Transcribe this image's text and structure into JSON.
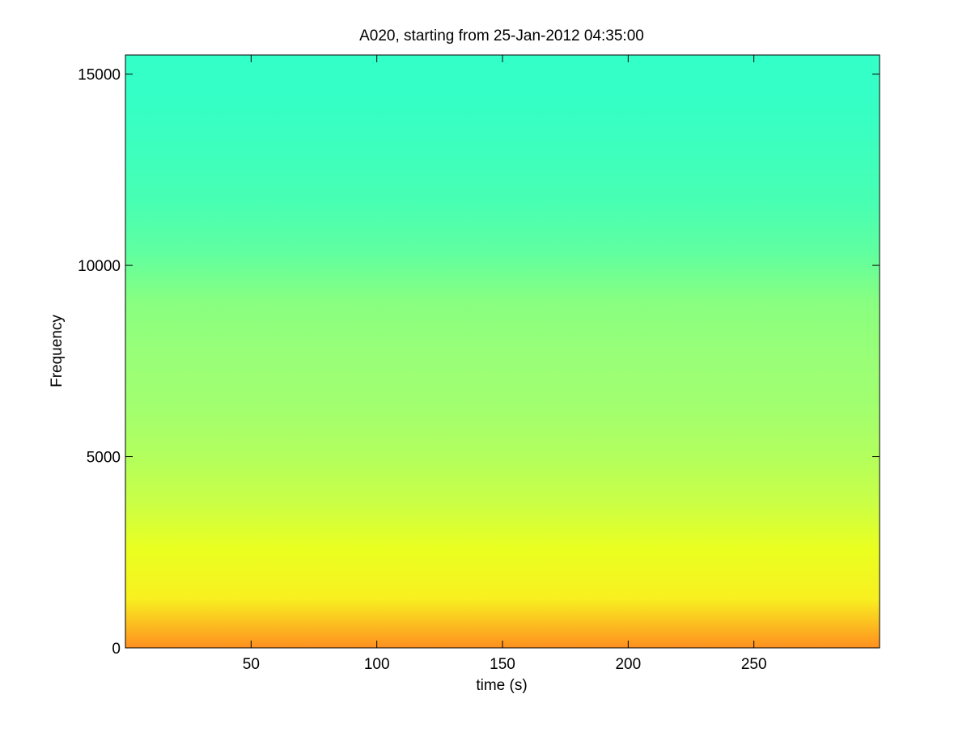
{
  "chart_data": {
    "type": "spectrogram",
    "title": "A020, starting from 25-Jan-2012 04:35:00",
    "x_label": "time (s)",
    "y_label": "Frequency",
    "xlim": [
      0,
      300
    ],
    "xticks": [
      50,
      100,
      150,
      200,
      250
    ],
    "ylim": [
      0,
      15500
    ],
    "yticks": [
      0,
      5000,
      10000,
      15000
    ],
    "colors": [
      "#33ffc8",
      "#35ffc5",
      "#3effbd",
      "#48ffb2",
      "#60ffa0",
      "#88ff80",
      "#98ff78",
      "#a0ff70",
      "#b0ff60",
      "#c8ff48",
      "#eaff20",
      "#f8f020",
      "#ff9020"
    ]
  }
}
